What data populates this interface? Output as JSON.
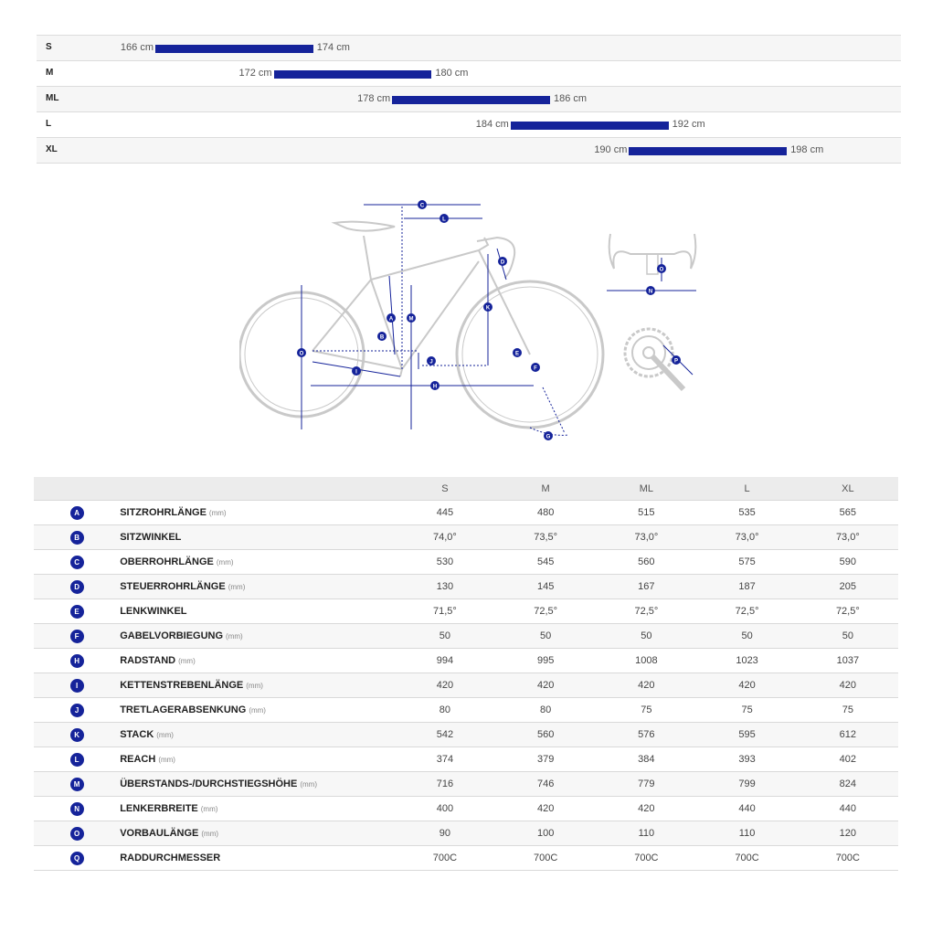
{
  "size_chart": [
    {
      "size": "S",
      "min_label": "166 cm",
      "max_label": "174 cm",
      "min_cm": 166,
      "max_cm": 174
    },
    {
      "size": "M",
      "min_label": "172 cm",
      "max_label": "180 cm",
      "min_cm": 172,
      "max_cm": 180
    },
    {
      "size": "ML",
      "min_label": "178 cm",
      "max_label": "186 cm",
      "min_cm": 178,
      "max_cm": 186
    },
    {
      "size": "L",
      "min_label": "184 cm",
      "max_label": "192 cm",
      "min_cm": 184,
      "max_cm": 192
    },
    {
      "size": "XL",
      "min_label": "190 cm",
      "max_label": "198 cm",
      "min_cm": 190,
      "max_cm": 198
    }
  ],
  "diagram_markers": {
    "A": "A",
    "B": "B",
    "C": "C",
    "D": "D",
    "E": "E",
    "F": "F",
    "G": "G",
    "H": "H",
    "I": "I",
    "J": "J",
    "K": "K",
    "L": "L",
    "M": "M",
    "N": "N",
    "O": "O",
    "P": "P",
    "Q": "Q"
  },
  "accent_color": "#15239a",
  "table": {
    "headers": [
      "S",
      "M",
      "ML",
      "L",
      "XL"
    ],
    "rows": [
      {
        "badge": "A",
        "name": "SITZROHRLÄNGE",
        "unit": "(mm)",
        "values": [
          "445",
          "480",
          "515",
          "535",
          "565"
        ]
      },
      {
        "badge": "B",
        "name": "SITZWINKEL",
        "unit": "",
        "values": [
          "74,0°",
          "73,5°",
          "73,0°",
          "73,0°",
          "73,0°"
        ]
      },
      {
        "badge": "C",
        "name": "OBERROHRLÄNGE",
        "unit": "(mm)",
        "values": [
          "530",
          "545",
          "560",
          "575",
          "590"
        ]
      },
      {
        "badge": "D",
        "name": "STEUERROHRLÄNGE",
        "unit": "(mm)",
        "values": [
          "130",
          "145",
          "167",
          "187",
          "205"
        ]
      },
      {
        "badge": "E",
        "name": "LENKWINKEL",
        "unit": "",
        "values": [
          "71,5°",
          "72,5°",
          "72,5°",
          "72,5°",
          "72,5°"
        ]
      },
      {
        "badge": "F",
        "name": "GABELVORBIEGUNG",
        "unit": "(mm)",
        "values": [
          "50",
          "50",
          "50",
          "50",
          "50"
        ]
      },
      {
        "badge": "H",
        "name": "RADSTAND",
        "unit": "(mm)",
        "values": [
          "994",
          "995",
          "1008",
          "1023",
          "1037"
        ]
      },
      {
        "badge": "I",
        "name": "KETTENSTREBENLÄNGE",
        "unit": "(mm)",
        "values": [
          "420",
          "420",
          "420",
          "420",
          "420"
        ]
      },
      {
        "badge": "J",
        "name": "TRETLAGERABSENKUNG",
        "unit": "(mm)",
        "values": [
          "80",
          "80",
          "75",
          "75",
          "75"
        ]
      },
      {
        "badge": "K",
        "name": "STACK",
        "unit": "(mm)",
        "values": [
          "542",
          "560",
          "576",
          "595",
          "612"
        ]
      },
      {
        "badge": "L",
        "name": "REACH",
        "unit": "(mm)",
        "values": [
          "374",
          "379",
          "384",
          "393",
          "402"
        ]
      },
      {
        "badge": "M",
        "name": "ÜBERSTANDS-/DURCHSTIEGSHÖHE",
        "unit": "(mm)",
        "values": [
          "716",
          "746",
          "779",
          "799",
          "824"
        ]
      },
      {
        "badge": "N",
        "name": "LENKERBREITE",
        "unit": "(mm)",
        "values": [
          "400",
          "420",
          "420",
          "440",
          "440"
        ]
      },
      {
        "badge": "O",
        "name": "VORBAULÄNGE",
        "unit": "(mm)",
        "values": [
          "90",
          "100",
          "110",
          "110",
          "120"
        ]
      },
      {
        "badge": "Q",
        "name": "RADDURCHMESSER",
        "unit": "",
        "values": [
          "700C",
          "700C",
          "700C",
          "700C",
          "700C"
        ]
      }
    ]
  }
}
